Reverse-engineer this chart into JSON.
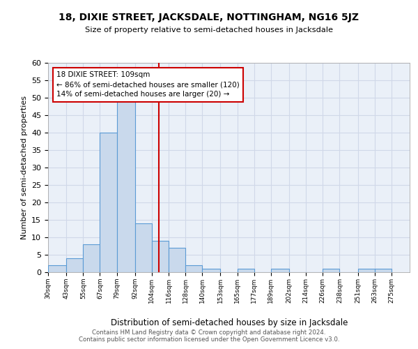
{
  "title": "18, DIXIE STREET, JACKSDALE, NOTTINGHAM, NG16 5JZ",
  "subtitle": "Size of property relative to semi-detached houses in Jacksdale",
  "xlabel": "Distribution of semi-detached houses by size in Jacksdale",
  "ylabel": "Number of semi-detached properties",
  "bin_edges": [
    30,
    43,
    55,
    67,
    79,
    92,
    104,
    116,
    128,
    140,
    153,
    165,
    177,
    189,
    202,
    214,
    226,
    238,
    251,
    263,
    275
  ],
  "bin_heights": [
    2,
    4,
    8,
    40,
    50,
    14,
    9,
    7,
    2,
    1,
    0,
    1,
    0,
    1,
    0,
    0,
    1,
    0,
    1,
    1
  ],
  "tick_labels": [
    "30sqm",
    "43sqm",
    "55sqm",
    "67sqm",
    "79sqm",
    "92sqm",
    "104sqm",
    "116sqm",
    "128sqm",
    "140sqm",
    "153sqm",
    "165sqm",
    "177sqm",
    "189sqm",
    "202sqm",
    "214sqm",
    "226sqm",
    "238sqm",
    "251sqm",
    "263sqm",
    "275sqm"
  ],
  "bar_color": "#c9d9ec",
  "bar_edge_color": "#5b9bd5",
  "vline_x": 109,
  "vline_color": "#cc0000",
  "annotation_line1": "18 DIXIE STREET: 109sqm",
  "annotation_line2": "← 86% of semi-detached houses are smaller (120)",
  "annotation_line3": "14% of semi-detached houses are larger (20) →",
  "annotation_box_color": "#ffffff",
  "annotation_box_edge": "#cc0000",
  "ylim": [
    0,
    60
  ],
  "yticks": [
    0,
    5,
    10,
    15,
    20,
    25,
    30,
    35,
    40,
    45,
    50,
    55,
    60
  ],
  "footer_line1": "Contains HM Land Registry data © Crown copyright and database right 2024.",
  "footer_line2": "Contains public sector information licensed under the Open Government Licence v3.0.",
  "grid_color": "#d0d8e8",
  "background_color": "#eaf0f8"
}
